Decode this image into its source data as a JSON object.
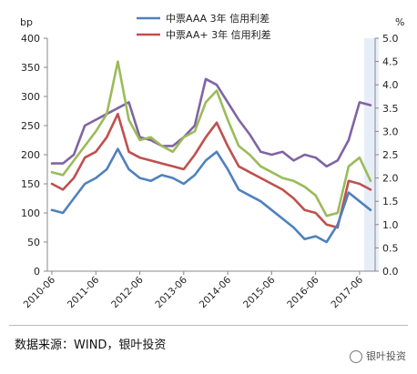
{
  "chart_data": {
    "type": "line",
    "y_left_label": "bp",
    "y_right_label": "%",
    "y_left_lim": [
      0,
      400
    ],
    "y_right_lim": [
      0.0,
      5.0
    ],
    "y_left_ticks": [
      "0",
      "50",
      "100",
      "150",
      "200",
      "250",
      "300",
      "350",
      "400"
    ],
    "y_right_ticks": [
      "0.0",
      "0.5",
      "1.0",
      "1.5",
      "2.0",
      "2.5",
      "3.0",
      "3.5",
      "4.0",
      "4.5",
      "5.0"
    ],
    "x_ticks": [
      "2010-06",
      "2011-06",
      "2012-06",
      "2013-06",
      "2014-06",
      "2015-06",
      "2016-06",
      "2017-06"
    ],
    "legend_position": "top-center",
    "x": [
      "2010-06",
      "2010-09",
      "2010-12",
      "2011-03",
      "2011-06",
      "2011-09",
      "2011-12",
      "2012-03",
      "2012-06",
      "2012-09",
      "2012-12",
      "2013-03",
      "2013-06",
      "2013-09",
      "2013-12",
      "2014-03",
      "2014-06",
      "2014-09",
      "2014-12",
      "2015-03",
      "2015-06",
      "2015-09",
      "2015-12",
      "2016-03",
      "2016-06",
      "2016-09",
      "2016-12",
      "2017-03",
      "2017-06",
      "2017-08"
    ],
    "series": [
      {
        "name": "中票AAA 3年 信用利差",
        "color": "#4f81bd",
        "axis": "left",
        "values": [
          105,
          100,
          125,
          150,
          160,
          175,
          210,
          175,
          160,
          155,
          165,
          160,
          150,
          165,
          190,
          205,
          175,
          140,
          130,
          120,
          105,
          90,
          75,
          55,
          60,
          50,
          80,
          135,
          120,
          105
        ]
      },
      {
        "name": "中票AA+ 3年 信用利差",
        "color": "#c0504d",
        "axis": "left",
        "values": [
          150,
          140,
          160,
          195,
          205,
          230,
          270,
          205,
          195,
          190,
          185,
          180,
          175,
          200,
          230,
          255,
          215,
          180,
          170,
          160,
          150,
          140,
          125,
          105,
          100,
          80,
          75,
          155,
          150,
          140
        ]
      },
      {
        "name": "",
        "color": "#9bbb59",
        "axis": "left",
        "values": [
          170,
          165,
          190,
          215,
          240,
          270,
          360,
          260,
          225,
          230,
          215,
          205,
          230,
          240,
          290,
          310,
          260,
          215,
          200,
          180,
          170,
          160,
          155,
          145,
          130,
          95,
          100,
          180,
          195,
          155
        ]
      },
      {
        "name": "",
        "color": "#8064a2",
        "axis": "left",
        "values": [
          185,
          185,
          200,
          250,
          260,
          270,
          280,
          290,
          230,
          225,
          215,
          215,
          230,
          250,
          330,
          320,
          290,
          260,
          235,
          205,
          200,
          205,
          190,
          200,
          195,
          180,
          190,
          225,
          290,
          285
        ]
      }
    ]
  },
  "footer": {
    "source": "数据来源：WIND，银叶投资",
    "watermark": "银叶投资"
  },
  "colors": {
    "axis": "#888888",
    "highlight": "#d9e2f3"
  }
}
